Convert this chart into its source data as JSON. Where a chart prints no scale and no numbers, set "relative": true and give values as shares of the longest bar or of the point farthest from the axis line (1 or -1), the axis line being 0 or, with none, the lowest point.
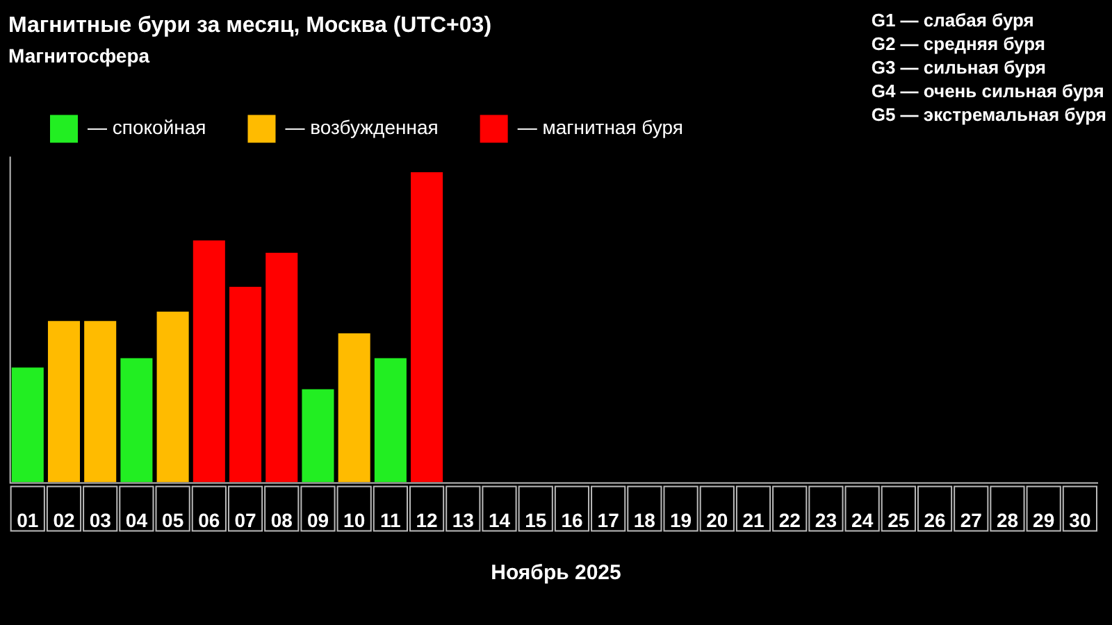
{
  "chart_data": {
    "type": "bar",
    "title": "Магнитные бури за месяц, Москва (UTC+03)",
    "legend_title": "Магнитосфера",
    "xlabel": "Ноябрь 2025",
    "relative": true,
    "stacked": true,
    "legend": "top left",
    "categories": [
      "01",
      "02",
      "03",
      "04",
      "05",
      "06",
      "07",
      "08",
      "09",
      "10",
      "11",
      "12",
      "13",
      "14",
      "15",
      "16",
      "17",
      "18",
      "19",
      "20",
      "21",
      "22",
      "23",
      "24",
      "25",
      "26",
      "27",
      "28",
      "29",
      "30"
    ],
    "series": [
      {
        "name": "— спокойная",
        "color": "#22ee22",
        "values": [
          0.37,
          null,
          null,
          0.4,
          null,
          null,
          null,
          null,
          0.3,
          null,
          0.4,
          null,
          null,
          null,
          null,
          null,
          null,
          null,
          null,
          null,
          null,
          null,
          null,
          null,
          null,
          null,
          null,
          null,
          null,
          null
        ]
      },
      {
        "name": "— возбужденная",
        "color": "#ffbb00",
        "values": [
          null,
          0.52,
          0.52,
          null,
          0.55,
          null,
          null,
          null,
          null,
          0.48,
          null,
          null,
          null,
          null,
          null,
          null,
          null,
          null,
          null,
          null,
          null,
          null,
          null,
          null,
          null,
          null,
          null,
          null,
          null,
          null
        ]
      },
      {
        "name": "— магнитная буря",
        "color": "#ff0000",
        "values": [
          null,
          null,
          null,
          null,
          null,
          0.78,
          0.63,
          0.74,
          null,
          null,
          null,
          1,
          null,
          null,
          null,
          null,
          null,
          null,
          null,
          null,
          null,
          null,
          null,
          null,
          null,
          null,
          null,
          null,
          null,
          null
        ]
      }
    ],
    "annotations": [
      "G1 — слабая буря",
      "G2 — средняя буря",
      "G3 — сильная буря",
      "G4 — очень сильная буря",
      "G5 — экстремальная буря"
    ]
  }
}
